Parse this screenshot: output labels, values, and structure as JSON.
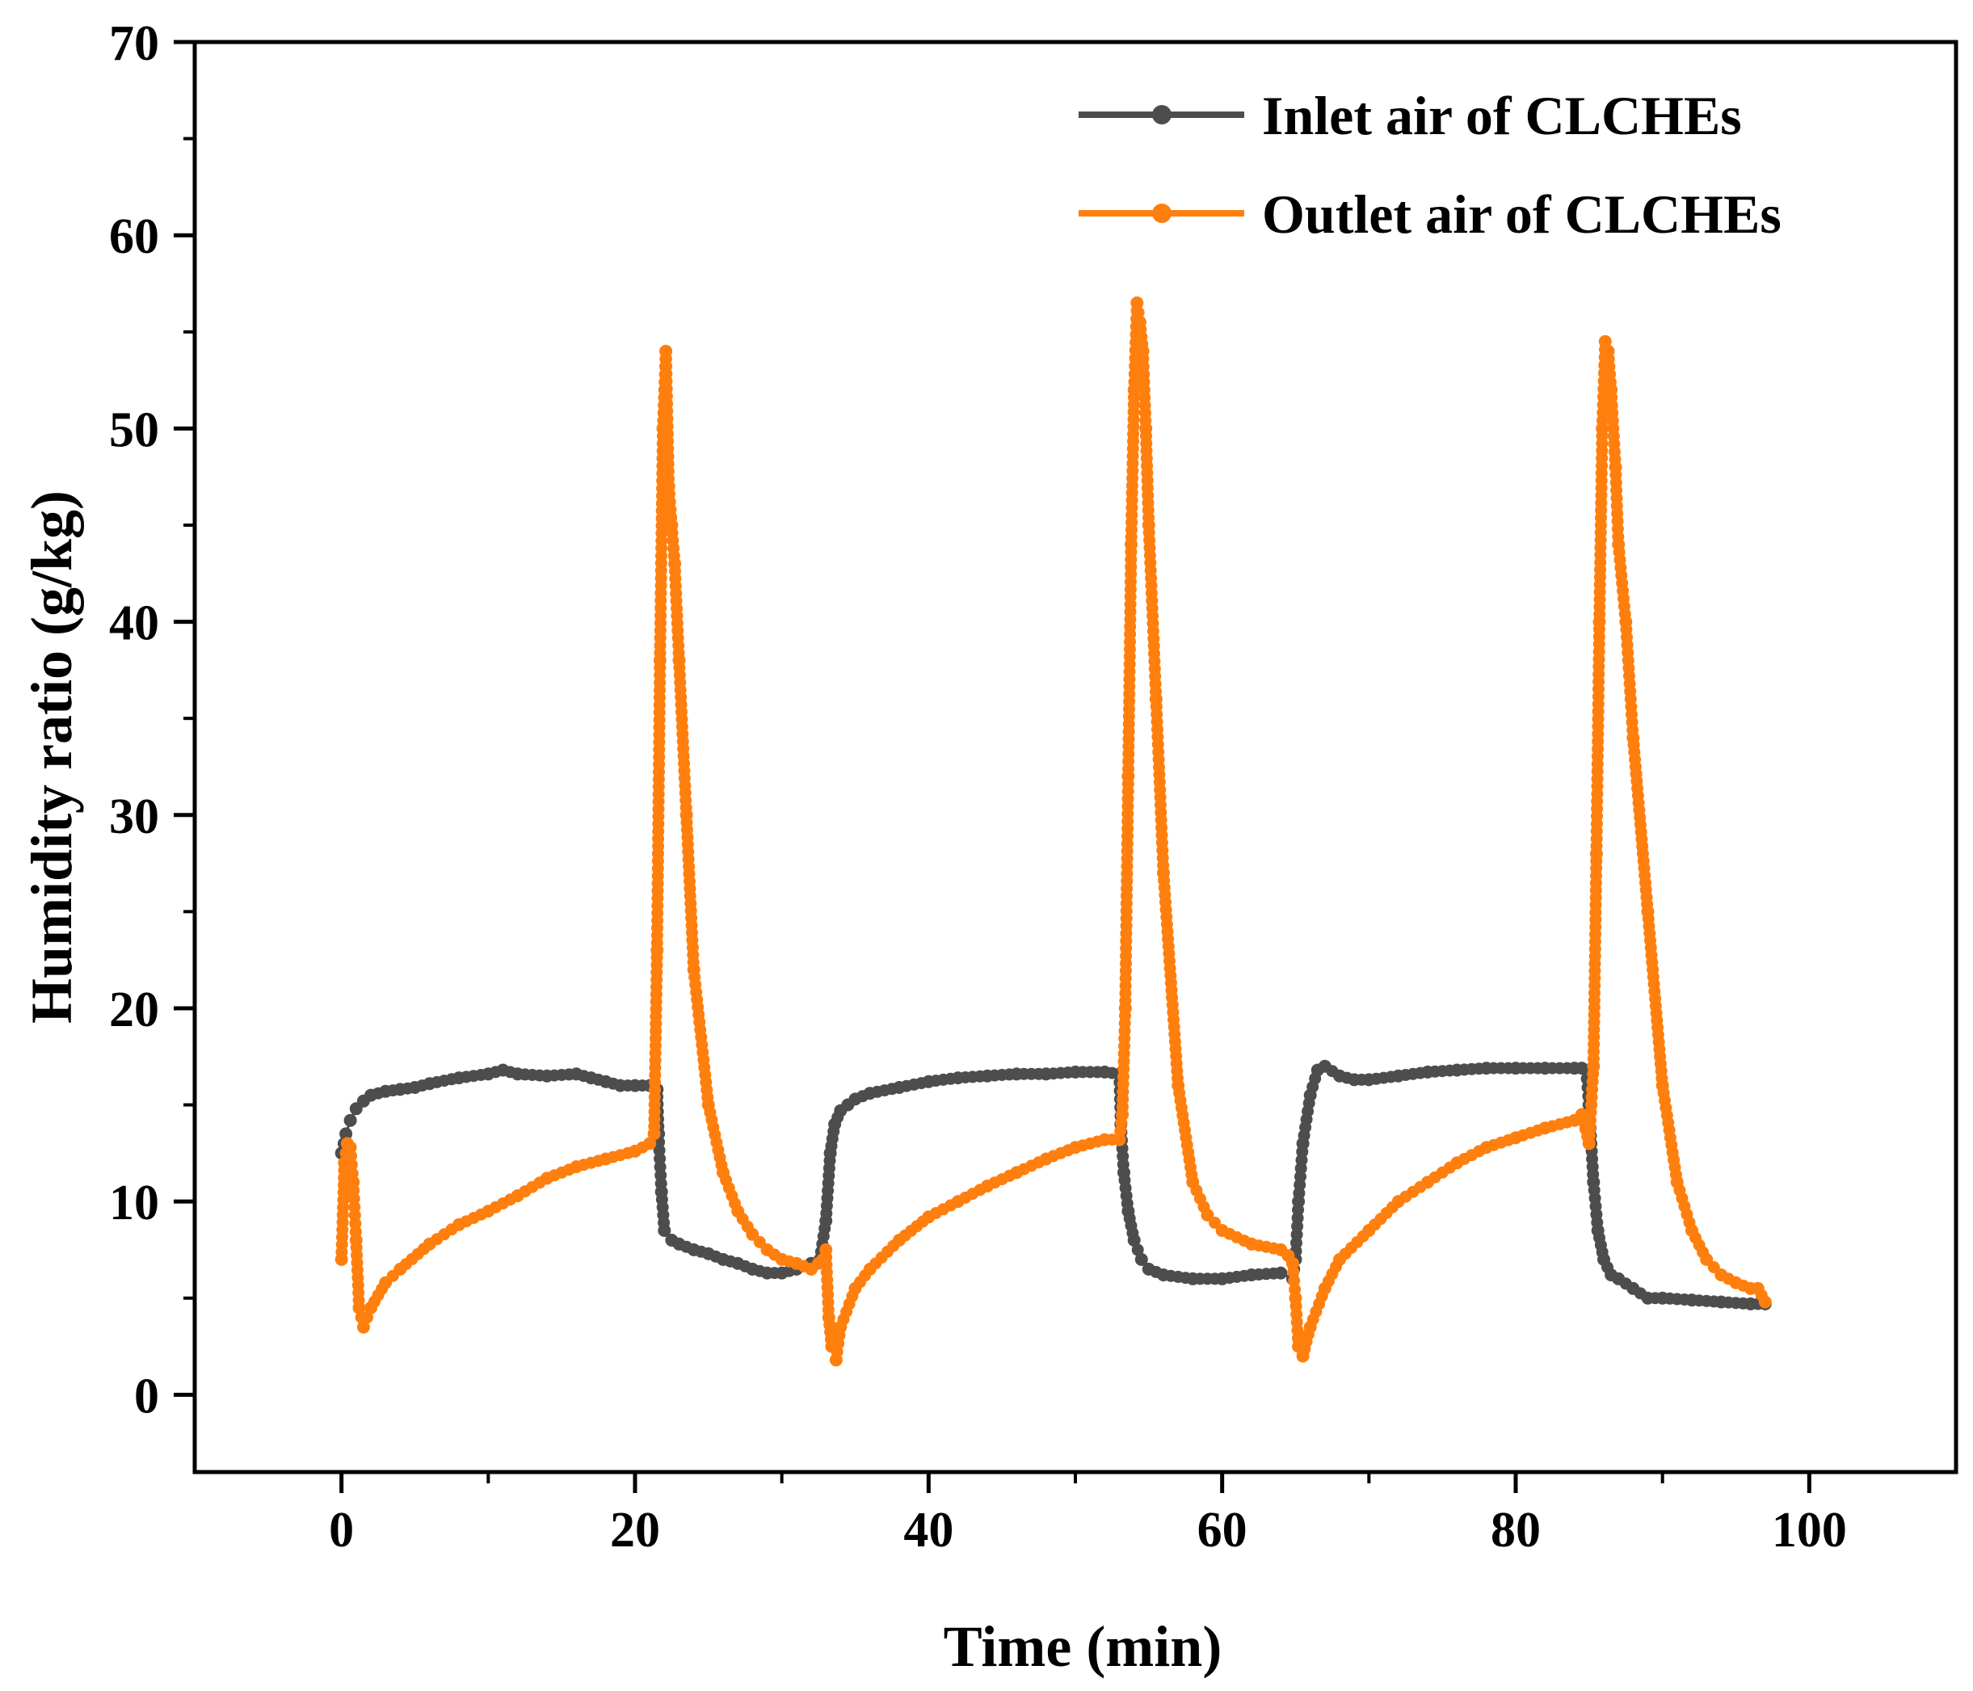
{
  "chart_data": {
    "type": "line",
    "title": "",
    "xlabel": "Time (min)",
    "ylabel": "Humidity ratio (g/kg)",
    "xlim": [
      -10,
      110
    ],
    "ylim": [
      -4,
      70
    ],
    "xticks": [
      0,
      20,
      40,
      60,
      80,
      100
    ],
    "yticks": [
      0,
      10,
      20,
      30,
      40,
      50,
      60,
      70
    ],
    "grid": false,
    "legend_position": "top-right",
    "series": [
      {
        "name": "Inlet air of CLCHEs",
        "color": "#4d4d4d",
        "x": [
          0,
          0.3,
          0.6,
          1,
          1.5,
          2,
          3,
          4,
          5,
          6,
          8,
          10,
          11,
          12,
          14,
          16,
          17,
          18,
          19,
          20,
          21,
          21.5,
          21.6,
          21.8,
          22,
          22.5,
          23,
          24,
          25,
          26,
          27,
          28,
          29,
          30,
          31,
          32,
          32.6,
          33,
          33.3,
          33.6,
          34,
          34.5,
          35,
          36,
          38,
          40,
          42,
          44,
          46,
          48,
          50,
          52,
          53,
          53.1,
          53.3,
          53.6,
          54,
          54.5,
          55,
          56,
          58,
          60,
          62,
          64,
          64.8,
          65,
          65.2,
          65.5,
          66,
          66.5,
          67,
          68,
          69,
          70,
          72,
          74,
          76,
          78,
          80,
          82,
          84,
          84.5,
          84.8,
          85,
          85.3,
          85.6,
          86,
          86.5,
          87,
          88,
          89,
          90,
          92,
          94,
          96,
          97
        ],
        "y": [
          12.5,
          13.5,
          14.2,
          14.8,
          15.2,
          15.5,
          15.7,
          15.8,
          15.9,
          16.1,
          16.4,
          16.6,
          16.8,
          16.6,
          16.5,
          16.6,
          16.4,
          16.2,
          16.0,
          16.0,
          16.0,
          15.8,
          13.5,
          10.5,
          8.5,
          8.0,
          7.8,
          7.5,
          7.3,
          7.0,
          6.8,
          6.5,
          6.3,
          6.3,
          6.5,
          6.8,
          7.0,
          9.0,
          12.5,
          14.0,
          14.7,
          15.0,
          15.3,
          15.6,
          15.9,
          16.2,
          16.4,
          16.5,
          16.6,
          16.6,
          16.7,
          16.7,
          16.6,
          14.0,
          11.5,
          9.5,
          8.0,
          7.0,
          6.5,
          6.2,
          6.0,
          6.0,
          6.2,
          6.3,
          6.0,
          7.0,
          10.0,
          13.0,
          15.5,
          16.8,
          17.0,
          16.5,
          16.3,
          16.3,
          16.5,
          16.7,
          16.8,
          16.9,
          16.9,
          16.9,
          16.9,
          16.9,
          16.8,
          15.0,
          11.0,
          8.5,
          7.0,
          6.2,
          6.0,
          5.5,
          5.0,
          5.0,
          4.9,
          4.8,
          4.7,
          4.7
        ]
      },
      {
        "name": "Outlet air of CLCHEs",
        "color": "#ff7f0e",
        "x": [
          0,
          0.2,
          0.4,
          0.6,
          0.8,
          1,
          1.2,
          1.5,
          2,
          3,
          4,
          6,
          8,
          10,
          12,
          14,
          16,
          18,
          20,
          21,
          21.3,
          21.5,
          21.7,
          21.9,
          22.1,
          22.3,
          22.5,
          22.7,
          23,
          23.5,
          24,
          25,
          26,
          27,
          28,
          29,
          30,
          31,
          32,
          32.5,
          32.8,
          33,
          33.2,
          33.4,
          33.7,
          34,
          35,
          36,
          38,
          40,
          42,
          44,
          46,
          48,
          50,
          52,
          53,
          53.2,
          53.4,
          53.6,
          53.8,
          54,
          54.2,
          54.4,
          54.6,
          54.8,
          55,
          55.5,
          56,
          57,
          58,
          59,
          60,
          62,
          64,
          64.5,
          64.8,
          65,
          65.2,
          65.5,
          66,
          67,
          68,
          70,
          72,
          74,
          76,
          78,
          80,
          82,
          84,
          84.5,
          85,
          85.3,
          85.5,
          85.7,
          85.9,
          86.1,
          86.3,
          86.5,
          86.8,
          87,
          87.5,
          88,
          89,
          90,
          91,
          92,
          93,
          94,
          95,
          96,
          96.5,
          97
        ],
        "y": [
          7.0,
          12.0,
          13.0,
          12.8,
          11.0,
          8.0,
          4.5,
          3.5,
          4.5,
          5.8,
          6.5,
          7.8,
          8.8,
          9.5,
          10.3,
          11.2,
          11.8,
          12.2,
          12.6,
          13.0,
          13.5,
          23.0,
          38.0,
          50.0,
          54.0,
          47.0,
          45.0,
          43.0,
          38.0,
          30.0,
          22.0,
          15.0,
          11.5,
          9.5,
          8.3,
          7.5,
          7.0,
          6.8,
          6.5,
          6.8,
          7.0,
          7.5,
          4.0,
          2.5,
          1.8,
          3.5,
          5.5,
          6.5,
          8.0,
          9.2,
          10.0,
          10.8,
          11.5,
          12.2,
          12.8,
          13.2,
          13.2,
          14.5,
          20.0,
          32.0,
          44.0,
          52.0,
          56.5,
          55.5,
          54.0,
          50.0,
          45.0,
          36.0,
          27.0,
          16.0,
          11.0,
          9.3,
          8.5,
          7.8,
          7.5,
          7.2,
          6.8,
          5.0,
          2.5,
          2.0,
          3.5,
          5.5,
          7.0,
          8.5,
          10.0,
          11.0,
          12.0,
          12.8,
          13.3,
          13.8,
          14.2,
          14.5,
          13.0,
          17.0,
          28.0,
          40.0,
          50.0,
          54.5,
          54.0,
          52.0,
          48.0,
          44.0,
          40.0,
          34.0,
          25.0,
          16.0,
          11.0,
          8.5,
          7.0,
          6.2,
          5.8,
          5.5,
          5.5,
          4.8
        ]
      }
    ]
  }
}
